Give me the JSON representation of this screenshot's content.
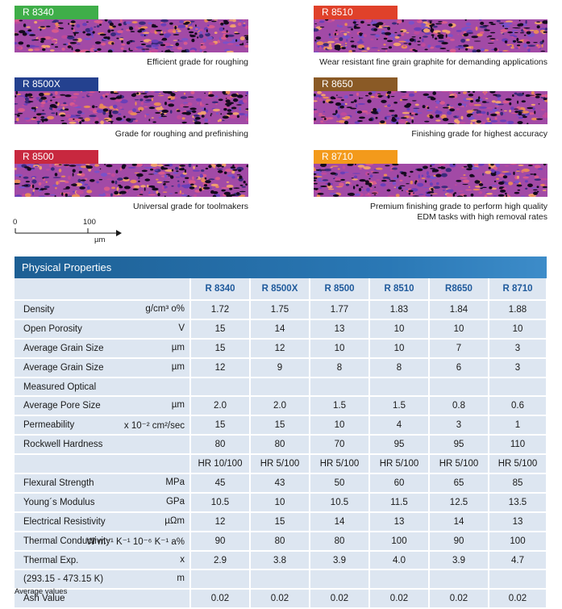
{
  "grades": [
    {
      "name": "R 8340",
      "color": "#3fae49",
      "caption": "Efficient grade for roughing"
    },
    {
      "name": "R 8500X",
      "color": "#24418f",
      "caption": "Grade for roughing and prefinishing"
    },
    {
      "name": "R 8500",
      "color": "#c8283f",
      "caption": "Universal grade for toolmakers"
    },
    {
      "name": "R 8510",
      "color": "#e0412a",
      "caption": "Wear resistant fine grain graphite for demanding applications"
    },
    {
      "name": "R 8650",
      "color": "#8a5a26",
      "caption": "Finishing grade for highest accuracy"
    },
    {
      "name": "R 8710",
      "color": "#f39a1b",
      "caption_line1": "Premium finishing grade to perform high quality",
      "caption_line2": "EDM tasks with high removal rates"
    }
  ],
  "scale": {
    "zero": "0",
    "hundred": "100",
    "unit": "µm"
  },
  "table": {
    "title": "Physical Properties",
    "columns": [
      "R 8340",
      "R 8500X",
      "R 8500",
      "R 8510",
      "R8650",
      "R 8710"
    ],
    "rows": [
      {
        "label": "Density",
        "unit": "g/cm³ o%",
        "values": [
          "1.72",
          "1.75",
          "1.77",
          "1.83",
          "1.84",
          "1.88"
        ]
      },
      {
        "label": "Open Porosity",
        "unit": "V",
        "values": [
          "15",
          "14",
          "13",
          "10",
          "10",
          "10"
        ]
      },
      {
        "label": "Average Grain Size",
        "unit": "µm",
        "values": [
          "15",
          "12",
          "10",
          "10",
          "7",
          "3"
        ]
      },
      {
        "label": "Average Grain Size",
        "unit": "µm",
        "values": [
          "12",
          "9",
          "8",
          "8",
          "6",
          "3"
        ]
      },
      {
        "label": "Measured Optical",
        "unit": "",
        "values": [
          "",
          "",
          "",
          "",
          "",
          ""
        ]
      },
      {
        "label": "Average Pore Size",
        "unit": "µm",
        "values": [
          "2.0",
          "2.0",
          "1.5",
          "1.5",
          "0.8",
          "0.6"
        ]
      },
      {
        "label": "Permeability",
        "unit": "x 10⁻² cm²/sec",
        "values": [
          "15",
          "15",
          "10",
          "4",
          "3",
          "1"
        ]
      },
      {
        "label": "Rockwell Hardness",
        "unit": "",
        "values": [
          "80",
          "80",
          "70",
          "95",
          "95",
          "110"
        ]
      },
      {
        "label": "",
        "unit": "",
        "values": [
          "HR 10/100",
          "HR 5/100",
          "HR 5/100",
          "HR 5/100",
          "HR 5/100",
          "HR 5/100"
        ]
      },
      {
        "label": "Flexural Strength",
        "unit": "MPa",
        "values": [
          "45",
          "43",
          "50",
          "60",
          "65",
          "85"
        ]
      },
      {
        "label": "Young´s Modulus",
        "unit": "GPa",
        "values": [
          "10.5",
          "10",
          "10.5",
          "11.5",
          "12.5",
          "13.5"
        ]
      },
      {
        "label": "Electrical Resistivity",
        "unit": "µΩm",
        "values": [
          "12",
          "15",
          "14",
          "13",
          "14",
          "13"
        ]
      },
      {
        "label": "Thermal Conductivity",
        "unit": "W m⁻¹ K⁻¹ 10⁻⁶ K⁻¹ a%",
        "values": [
          "90",
          "80",
          "80",
          "100",
          "90",
          "100"
        ]
      },
      {
        "label": "Thermal Exp.",
        "unit": "x",
        "values": [
          "2.9",
          "3.8",
          "3.9",
          "4.0",
          "3.9",
          "4.7"
        ]
      },
      {
        "label": "(293.15 - 473.15 K)",
        "unit": "m",
        "values": [
          "",
          "",
          "",
          "",
          "",
          ""
        ]
      },
      {
        "label": "Ash Value",
        "unit": "",
        "values": [
          "0.02",
          "0.02",
          "0.02",
          "0.02",
          "0.02",
          "0.02"
        ]
      }
    ]
  },
  "note": "Average values"
}
